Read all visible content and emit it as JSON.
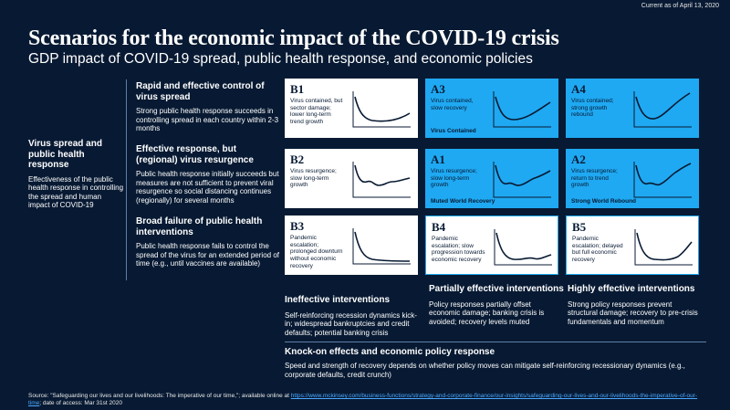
{
  "as_of": "Current as of April 13, 2020",
  "title": "Scenarios for the economic impact of the COVID-19 crisis",
  "subtitle": "GDP impact of COVID-19 spread, public health response, and economic policies",
  "left": {
    "title": "Virus spread and public health response",
    "desc": "Effectiveness of the public health response in controlling the spread and human impact of COVID-19"
  },
  "rows": [
    {
      "title": "Rapid and effective control of virus spread",
      "desc": "Strong public health response succeeds in controlling spread in each country within 2-3 months"
    },
    {
      "title": "Effective response, but (regional) virus resurgence",
      "desc": "Public health response initially succeeds but measures are not sufficient to prevent viral resurgence so social distancing continues (regionally) for several months"
    },
    {
      "title": "Broad failure of public health interventions",
      "desc": "Public health response fails to control the spread of the virus for an extended period of time (e.g., until vaccines are available)"
    }
  ],
  "cells": {
    "B1": {
      "id": "B1",
      "desc": "Virus contained, but sector damage; lower long-term trend growth",
      "label": ""
    },
    "A3": {
      "id": "A3",
      "desc": "Virus contained, slow recovery",
      "label": "Virus Contained"
    },
    "A4": {
      "id": "A4",
      "desc": "Virus contained; strong growth rebound",
      "label": ""
    },
    "B2": {
      "id": "B2",
      "desc": "Virus resurgence; slow long-term growth",
      "label": ""
    },
    "A1": {
      "id": "A1",
      "desc": "Virus resurgence; slow long-term growth",
      "label": "Muted World Recovery"
    },
    "A2": {
      "id": "A2",
      "desc": "Virus resurgence; return to trend growth",
      "label": "Strong World Rebound"
    },
    "B3": {
      "id": "B3",
      "desc": "Pandemic escalation; prolonged downturn without economic recovery",
      "label": ""
    },
    "B4": {
      "id": "B4",
      "desc": "Pandemic escalation; slow progression towards economic recovery",
      "label": ""
    },
    "B5": {
      "id": "B5",
      "desc": "Pandemic escalation; delayed but full economic recovery",
      "label": ""
    }
  },
  "columns": [
    {
      "title": "Ineffective interventions",
      "desc": "Self-reinforcing recession dynamics kick-in; widespread bankruptcies and credit defaults; potential banking crisis"
    },
    {
      "title": "Partially effective interventions",
      "desc": "Policy responses partially offset economic damage; banking crisis is avoided; recovery levels muted"
    },
    {
      "title": "Highly effective interventions",
      "desc": "Strong policy responses prevent structural damage; recovery to pre-crisis fundamentals and momentum"
    }
  ],
  "knock_on": {
    "title": "Knock-on effects and economic policy response",
    "desc": "Speed and strength of recovery depends on whether policy moves can mitigate self-reinforcing recessionary dynamics (e.g., corporate defaults, credit crunch)"
  },
  "source": {
    "prefix": "Source: \"Safeguarding our lives and our livelihoods: The imperative of our time,\"; available online at ",
    "link": "https://www.mckinsey.com/business-functions/strategy-and-corporate-finance/our-insights/safeguarding-our-lives-and-our-livelihoods-the-imperative-of-our-time",
    "suffix": "; date of access: Mar 31st 2020"
  },
  "colors": {
    "background": "#081a33",
    "accent": "#1fa9f2",
    "white": "#ffffff"
  }
}
